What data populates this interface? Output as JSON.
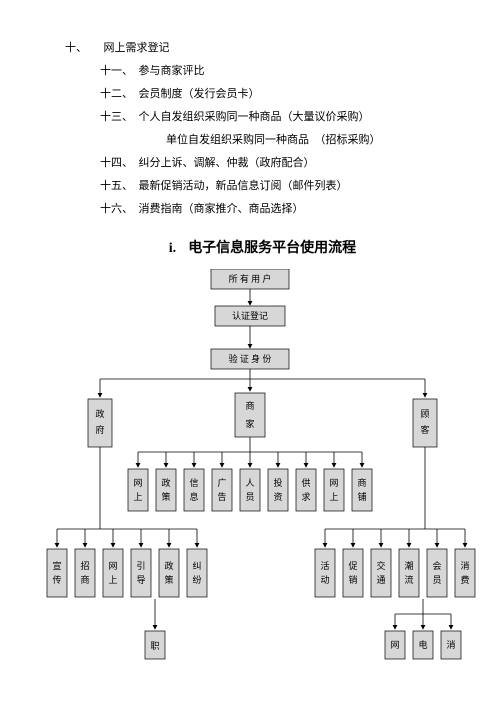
{
  "list": {
    "top": "十、　　网上需求登记",
    "items": [
      "十一、　参与商家评比",
      "十二、　会员制度（发行会员卡）",
      "十三、　个人自发组织采购同一种商品（大量议价采购）",
      "　　　单位自发组织采购同一种商品　（招标采购）",
      "十四、　纠分上诉、调解、仲裁（政府配合）",
      "十五、　最新促销活动，新品信息订阅（邮件列表）",
      "十六、　消费指南（商家推介、商品选择）"
    ]
  },
  "heading": {
    "prefix": "i.",
    "text": "电子信息服务平台使用流程"
  },
  "flow": {
    "level1": "所 有 用 户",
    "level2": "认证登记",
    "level3": "验 证 身 份",
    "branches": [
      "政府",
      "商家",
      "顾客"
    ],
    "gov_children": [
      "宣传",
      "招商",
      "网上",
      "引导",
      "政策",
      "纠纷"
    ],
    "merchant_children": [
      "网上",
      "政策",
      "信息",
      "广告",
      "人员",
      "投资",
      "供求",
      "网上",
      "商铺"
    ],
    "customer_children": [
      "活动",
      "促销",
      "交通",
      "潮流",
      "会员",
      "消费"
    ],
    "bottom_left": [
      "职"
    ],
    "bottom_right": [
      "网",
      "电",
      "消"
    ],
    "colors": {
      "node_fill": "#d7d7d7",
      "node_stroke": "#000000",
      "background": "#ffffff",
      "text": "#000000"
    },
    "font_size": 9
  }
}
